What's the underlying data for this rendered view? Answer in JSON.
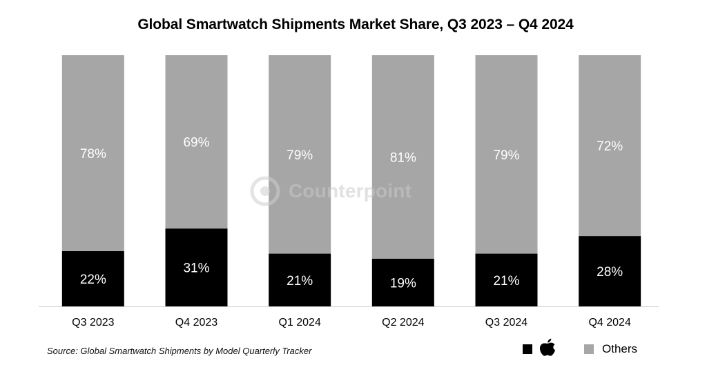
{
  "chart_data": {
    "type": "bar",
    "stacked": true,
    "title": "Global Smartwatch Shipments Market Share, Q3 2023 – Q4 2024",
    "xlabel": "",
    "ylabel": "",
    "ylim": [
      0,
      100
    ],
    "grid": false,
    "categories": [
      "Q3 2023",
      "Q4 2023",
      "Q1 2024",
      "Q2 2024",
      "Q3 2024",
      "Q4 2024"
    ],
    "series": [
      {
        "legend_icon": "apple-logo-icon",
        "color": "#000000",
        "values": [
          22,
          31,
          21,
          19,
          21,
          28
        ],
        "labels": [
          "22%",
          "31%",
          "21%",
          "19%",
          "21%",
          "28%"
        ]
      },
      {
        "name": "Others",
        "color": "#a6a6a6",
        "values": [
          78,
          69,
          79,
          81,
          79,
          72
        ],
        "labels": [
          "78%",
          "69%",
          "79%",
          "81%",
          "79%",
          "72%"
        ]
      }
    ],
    "legend_position": "bottom-right"
  },
  "source_note": "Source: Global Smartwatch Shipments by Model Quarterly Tracker",
  "legend": {
    "others_label": "Others"
  },
  "watermark": {
    "text": "Counterpoint"
  }
}
